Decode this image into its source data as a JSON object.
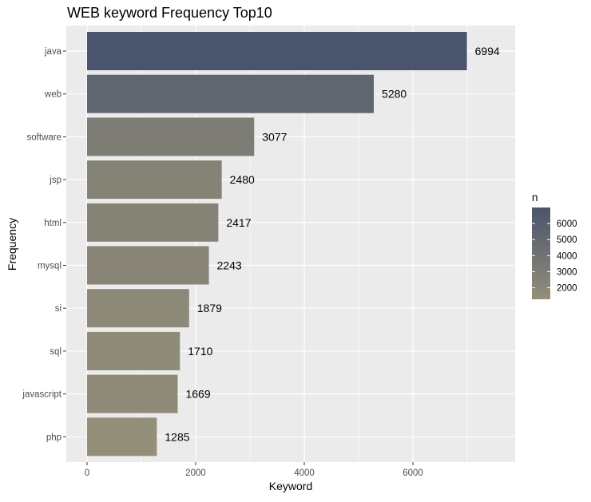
{
  "chart_data": {
    "type": "bar",
    "orientation": "horizontal",
    "title": "WEB keyword Frequency Top10",
    "xlabel": "Keyword",
    "ylabel": "Frequency",
    "categories": [
      "java",
      "web",
      "software",
      "jsp",
      "html",
      "mysql",
      "si",
      "sql",
      "javascript",
      "php"
    ],
    "values": [
      6994,
      5280,
      3077,
      2480,
      2417,
      2243,
      1879,
      1710,
      1669,
      1285
    ],
    "xlim": [
      0,
      7500
    ],
    "x_ticks": [
      0,
      2000,
      4000,
      6000
    ],
    "grid": true,
    "legend": {
      "title": "n",
      "placement": "right",
      "ticks": [
        2000,
        3000,
        4000,
        5000,
        6000
      ],
      "range": [
        1285,
        6994
      ]
    },
    "colors": {
      "panel_background": "#ebebeb",
      "grid_line": "#ffffff",
      "low": "#948f79",
      "high": "#4a546c"
    }
  }
}
